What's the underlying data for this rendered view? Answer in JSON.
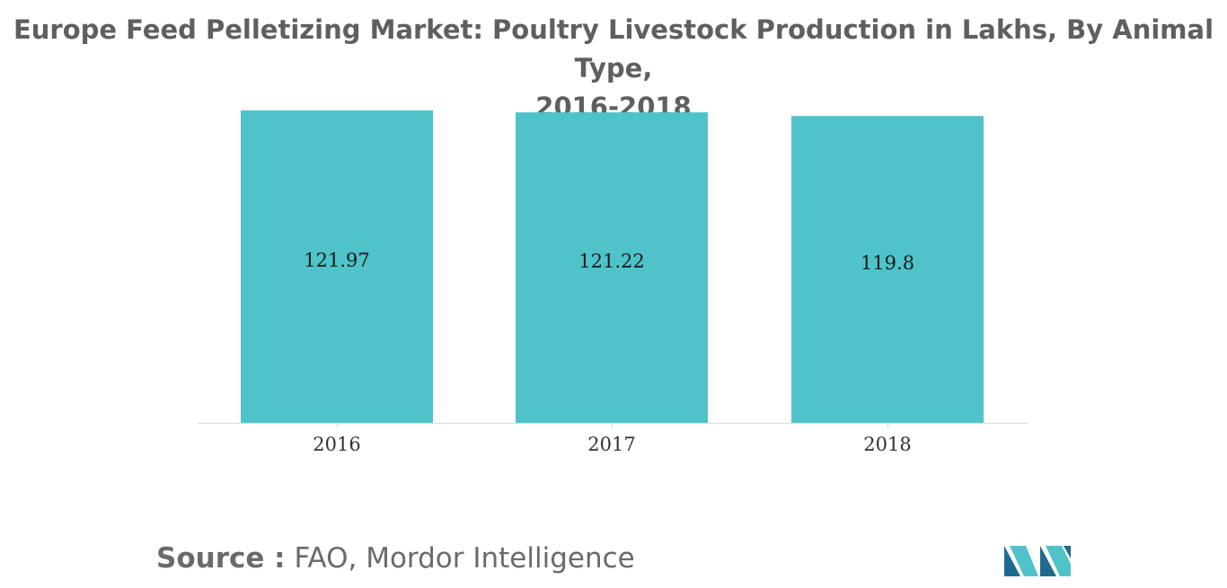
{
  "title_lines": [
    "Europe Feed Pelletizing Market: Poultry Livestock Production in Lakhs, By Animal Type,",
    "2016-2018"
  ],
  "source": {
    "label": "Source :",
    "text": "FAO, Mordor Intelligence"
  },
  "colors": {
    "bar": "#4fc3c9",
    "title": "#5f5f5f",
    "axis_text": "#333333",
    "logo_dark": "#1e6b8f",
    "logo_light": "#4fc3c9"
  },
  "chart_data": {
    "type": "bar",
    "title": "Europe Feed Pelletizing Market: Poultry Livestock Production in Lakhs, By Animal Type, 2016-2018",
    "categories": [
      "2016",
      "2017",
      "2018"
    ],
    "values": [
      121.97,
      121.22,
      119.8
    ],
    "data_labels": [
      "121.97",
      "121.22",
      "119.8"
    ],
    "xlabel": "",
    "ylabel": "",
    "grid": false,
    "legend": "none"
  }
}
